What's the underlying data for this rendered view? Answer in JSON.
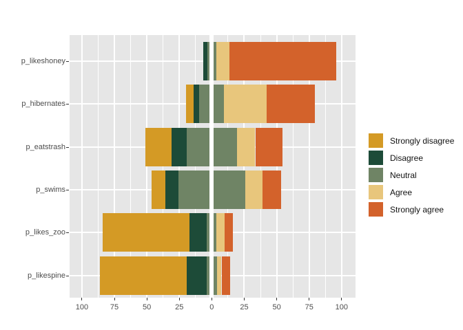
{
  "chart_data": {
    "type": "bar",
    "variant": "diverging-stacked-likert",
    "orientation": "horizontal",
    "title": "",
    "categories": [
      "p_likeshoney",
      "p_hibernates",
      "p_eatstrash",
      "p_swims",
      "p_likes_zoo",
      "p_likespine"
    ],
    "series": [
      {
        "name": "Strongly disagree",
        "color": "#d49a25",
        "side": "negative",
        "values": [
          0,
          6,
          20.3,
          10.6,
          67,
          67
        ]
      },
      {
        "name": "Disagree",
        "color": "#1d4b38",
        "side": "negative",
        "values": [
          3,
          4.4,
          11.5,
          10.1,
          13.3,
          15.4
        ]
      },
      {
        "name": "Neutral",
        "color": "#6f8465",
        "side": "split-at-zero",
        "values": [
          6.6,
          19,
          38.6,
          51.5,
          7.4,
          7.6
        ]
      },
      {
        "name": "Agree",
        "color": "#e8c67c",
        "side": "positive",
        "values": [
          10.5,
          33,
          14.2,
          13.3,
          6,
          3.7
        ]
      },
      {
        "name": "Strongly agree",
        "color": "#d3622b",
        "side": "positive",
        "values": [
          82,
          37,
          21,
          14.5,
          6.3,
          6.4
        ]
      }
    ],
    "x_axis": {
      "ticks": [
        -100,
        -75,
        -50,
        -25,
        0,
        25,
        50,
        75,
        100
      ],
      "tick_labels": [
        "100",
        "75",
        "50",
        "25",
        "0",
        "25",
        "50",
        "75",
        "100"
      ],
      "range": [
        -109.5,
        110.7
      ],
      "minor_ticks": [
        -87.5,
        -62.5,
        -37.5,
        -12.5,
        12.5,
        37.5,
        62.5,
        87.5
      ]
    },
    "legend_position": "right",
    "grid": true
  },
  "legend": {
    "items": [
      {
        "label": "Strongly disagree",
        "color": "#d49a25"
      },
      {
        "label": "Disagree",
        "color": "#1d4b38"
      },
      {
        "label": "Neutral",
        "color": "#6f8465"
      },
      {
        "label": "Agree",
        "color": "#e8c67c"
      },
      {
        "label": "Strongly agree",
        "color": "#d3622b"
      }
    ]
  },
  "colors": {
    "panel_background": "#e6e6e6",
    "gridline": "#ffffff",
    "zero_divider": "#ffffff",
    "axis_text": "#4d4d4d",
    "tick_mark": "#333333",
    "page_background": "#ffffff"
  }
}
